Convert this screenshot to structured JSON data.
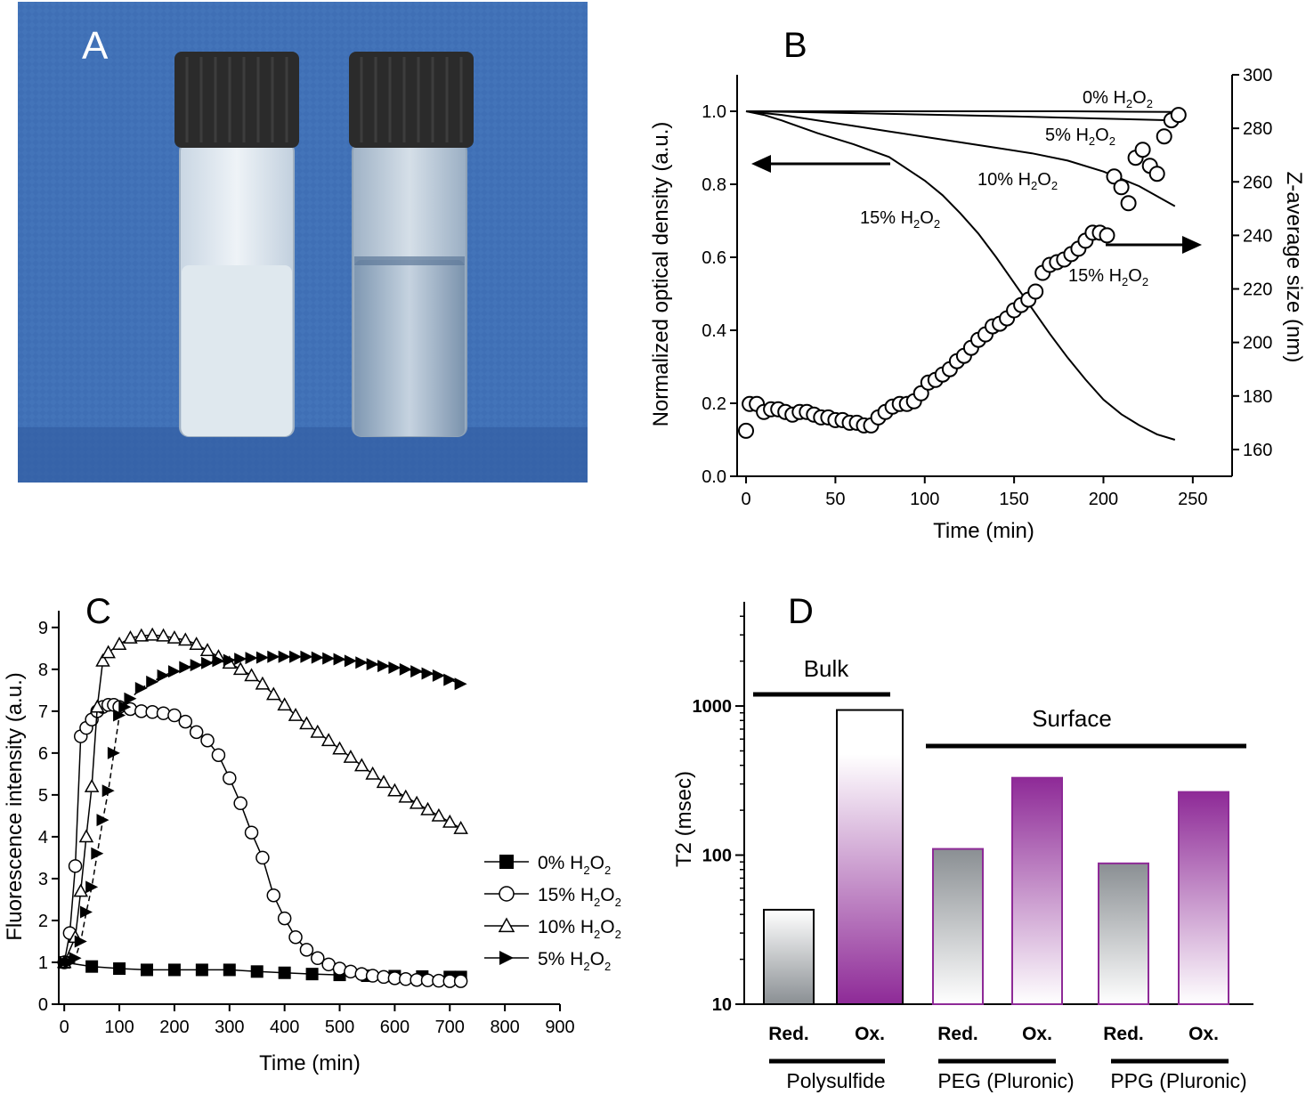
{
  "panel_a": {
    "label": "A",
    "vial_left": "turbid white dispersion",
    "vial_right": "clear solution"
  },
  "colors": {
    "photo_bg": "#3f6fb5",
    "photo_bg_dark": "#2f5a9e",
    "cap": "#2b2b2b",
    "milky": "#dde6ec",
    "purple": "#8e2a97",
    "grey_bar": "#8a8f93",
    "line": "#000000"
  },
  "chart_data": [
    {
      "id": "B",
      "label": "B",
      "type": "line",
      "xlabel": "Time (min)",
      "ylabel": "Normalized optical density (a.u.)",
      "y2label": "Z-average size (nm)",
      "xlim": [
        -5,
        272
      ],
      "ylim": [
        0,
        1.1
      ],
      "y2lim": [
        150,
        300
      ],
      "xticks": [
        "0",
        "50",
        "100",
        "150",
        "200",
        "250"
      ],
      "yticks": [
        "0.0",
        "0.2",
        "0.4",
        "0.6",
        "0.8",
        "1.0"
      ],
      "y2ticks": [
        "160",
        "180",
        "200",
        "220",
        "240",
        "260",
        "280",
        "300"
      ],
      "series": [
        {
          "name": "0% H2O2",
          "label_main": "0% H",
          "label_sub": "2",
          "label_tail": "O",
          "label_sub2": "2",
          "axis": "left",
          "x": [
            0,
            60,
            120,
            180,
            240
          ],
          "y": [
            1.0,
            1.0,
            1.0,
            1.0,
            0.998
          ]
        },
        {
          "name": "5% H2O2",
          "label_main": "5% H",
          "label_sub": "2",
          "label_tail": "O",
          "label_sub2": "2",
          "axis": "left",
          "x": [
            0,
            40,
            80,
            120,
            160,
            200,
            240
          ],
          "y": [
            1.0,
            0.997,
            0.993,
            0.989,
            0.985,
            0.98,
            0.975
          ]
        },
        {
          "name": "10% H2O2",
          "label_main": "10% H",
          "label_sub": "2",
          "label_tail": "O",
          "label_sub2": "2",
          "axis": "left",
          "x": [
            0,
            20,
            40,
            60,
            80,
            100,
            120,
            140,
            160,
            180,
            200,
            220,
            240
          ],
          "y": [
            1.0,
            0.99,
            0.975,
            0.96,
            0.945,
            0.93,
            0.915,
            0.9,
            0.885,
            0.865,
            0.835,
            0.795,
            0.74
          ]
        },
        {
          "name": "15% H2O2 (OD)",
          "label_main": "15% H",
          "label_sub": "2",
          "label_tail": "O",
          "label_sub2": "2",
          "axis": "left",
          "x": [
            0,
            10,
            20,
            40,
            60,
            80,
            100,
            110,
            120,
            130,
            140,
            150,
            160,
            170,
            180,
            190,
            200,
            210,
            220,
            230,
            240
          ],
          "y": [
            1.0,
            0.99,
            0.975,
            0.94,
            0.91,
            0.875,
            0.81,
            0.77,
            0.72,
            0.665,
            0.6,
            0.53,
            0.46,
            0.39,
            0.325,
            0.265,
            0.21,
            0.17,
            0.14,
            0.115,
            0.1
          ]
        },
        {
          "name": "15% H2O2 (size)",
          "label_main": "15% H",
          "label_sub": "2",
          "label_tail": "O",
          "label_sub2": "2",
          "axis": "right",
          "marker": "open-circle",
          "x": [
            0,
            2,
            6,
            10,
            14,
            18,
            22,
            26,
            30,
            34,
            38,
            42,
            46,
            50,
            54,
            58,
            62,
            66,
            70,
            74,
            78,
            82,
            86,
            90,
            94,
            98,
            102,
            106,
            110,
            114,
            118,
            122,
            126,
            130,
            134,
            138,
            142,
            146,
            150,
            154,
            158,
            162,
            166,
            170,
            174,
            178,
            182,
            186,
            190,
            194,
            198,
            202,
            206,
            210,
            214,
            218,
            222,
            226,
            230,
            234,
            238,
            242
          ],
          "y": [
            167,
            177,
            177,
            174,
            175,
            175,
            174,
            173,
            174,
            174,
            173,
            172,
            172,
            171,
            171,
            170,
            170,
            169,
            169,
            172,
            174,
            176,
            177,
            177,
            178,
            181,
            185,
            186,
            188,
            190,
            193,
            195,
            198,
            201,
            203,
            206,
            207,
            209,
            212,
            214,
            216,
            219,
            226,
            229,
            230,
            231,
            233,
            235,
            238,
            241,
            241,
            240,
            262,
            258,
            252,
            269,
            272,
            266,
            263,
            277,
            283,
            285
          ]
        }
      ],
      "annotations": [
        "0% H2O2",
        "5% H2O2",
        "10% H2O2",
        "15% H2O2",
        "15% H2O2"
      ]
    },
    {
      "id": "C",
      "label": "C",
      "type": "scatter",
      "xlabel": "Time (min)",
      "ylabel": "Fluorescence intensity (a.u.)",
      "xlim": [
        -10,
        900
      ],
      "ylim": [
        0,
        9.4
      ],
      "xticks": [
        "0",
        "100",
        "200",
        "300",
        "400",
        "500",
        "600",
        "700",
        "800",
        "900"
      ],
      "yticks": [
        "0",
        "1",
        "2",
        "3",
        "4",
        "5",
        "6",
        "7",
        "8",
        "9"
      ],
      "legend": [
        {
          "prefix": "0% H",
          "sub": "2",
          "tail": "O",
          "sub2": "2",
          "marker": "filled-square"
        },
        {
          "prefix": "15% H",
          "sub": "2",
          "tail": "O",
          "sub2": "2",
          "marker": "open-circle"
        },
        {
          "prefix": "10% H",
          "sub": "2",
          "tail": "O",
          "sub2": "2",
          "marker": "open-triangle"
        },
        {
          "prefix": "5% H",
          "sub": "2",
          "tail": "O",
          "sub2": "2",
          "marker": "filled-triangle-right"
        }
      ],
      "series": [
        {
          "name": "0% H2O2",
          "marker": "filled-square",
          "x": [
            0,
            50,
            100,
            150,
            200,
            250,
            300,
            350,
            400,
            450,
            500,
            550,
            600,
            650,
            700,
            720
          ],
          "y": [
            1.0,
            0.9,
            0.85,
            0.82,
            0.82,
            0.82,
            0.82,
            0.78,
            0.75,
            0.72,
            0.7,
            0.68,
            0.67,
            0.66,
            0.65,
            0.65
          ]
        },
        {
          "name": "15% H2O2",
          "marker": "open-circle",
          "x": [
            0,
            10,
            20,
            30,
            40,
            50,
            60,
            70,
            80,
            90,
            100,
            120,
            140,
            160,
            180,
            200,
            220,
            240,
            260,
            280,
            300,
            320,
            340,
            360,
            380,
            400,
            420,
            440,
            460,
            480,
            500,
            520,
            540,
            560,
            580,
            600,
            620,
            640,
            660,
            680,
            700,
            720
          ],
          "y": [
            1.0,
            1.7,
            3.3,
            6.4,
            6.6,
            6.8,
            7.0,
            7.1,
            7.15,
            7.15,
            7.1,
            7.05,
            7.0,
            6.98,
            6.95,
            6.9,
            6.75,
            6.5,
            6.3,
            5.95,
            5.4,
            4.8,
            4.1,
            3.5,
            2.6,
            2.05,
            1.6,
            1.3,
            1.1,
            0.95,
            0.85,
            0.78,
            0.72,
            0.68,
            0.65,
            0.62,
            0.6,
            0.58,
            0.57,
            0.56,
            0.55,
            0.55
          ]
        },
        {
          "name": "10% H2O2",
          "marker": "open-triangle",
          "x": [
            0,
            20,
            30,
            40,
            50,
            60,
            70,
            80,
            100,
            120,
            140,
            160,
            180,
            200,
            220,
            240,
            260,
            280,
            300,
            320,
            340,
            360,
            380,
            400,
            420,
            440,
            460,
            480,
            500,
            520,
            540,
            560,
            580,
            600,
            620,
            640,
            660,
            680,
            700,
            720
          ],
          "y": [
            1.0,
            1.6,
            2.7,
            4.0,
            5.2,
            7.1,
            8.2,
            8.4,
            8.6,
            8.75,
            8.8,
            8.82,
            8.8,
            8.75,
            8.7,
            8.6,
            8.45,
            8.3,
            8.15,
            8.0,
            7.85,
            7.65,
            7.4,
            7.15,
            6.9,
            6.7,
            6.5,
            6.3,
            6.1,
            5.9,
            5.7,
            5.5,
            5.3,
            5.1,
            4.95,
            4.8,
            4.65,
            4.5,
            4.35,
            4.2
          ]
        },
        {
          "name": "5% H2O2",
          "marker": "filled-triangle-right",
          "x": [
            0,
            10,
            20,
            30,
            40,
            50,
            60,
            70,
            80,
            90,
            100,
            110,
            120,
            140,
            160,
            180,
            200,
            220,
            240,
            260,
            280,
            300,
            320,
            340,
            360,
            380,
            400,
            420,
            440,
            460,
            480,
            500,
            520,
            540,
            560,
            580,
            600,
            620,
            640,
            660,
            680,
            700,
            720
          ],
          "y": [
            1.0,
            1.0,
            1.1,
            1.5,
            2.2,
            2.8,
            3.6,
            4.4,
            5.1,
            6.0,
            6.9,
            7.1,
            7.3,
            7.55,
            7.7,
            7.85,
            7.95,
            8.05,
            8.1,
            8.15,
            8.2,
            8.22,
            8.25,
            8.27,
            8.28,
            8.3,
            8.3,
            8.3,
            8.3,
            8.28,
            8.26,
            8.24,
            8.2,
            8.16,
            8.12,
            8.08,
            8.04,
            8.0,
            7.95,
            7.9,
            7.85,
            7.75,
            7.65
          ]
        }
      ]
    },
    {
      "id": "D",
      "label": "D",
      "type": "bar",
      "ylabel": "T2 (msec)",
      "yscale": "log",
      "ylim": [
        10,
        5000
      ],
      "yticks": [
        "10",
        "100",
        "1000"
      ],
      "categories": [
        "Red.",
        "Ox.",
        "Red.",
        "Ox.",
        "Red.",
        "Ox."
      ],
      "values": [
        43,
        940,
        110,
        330,
        88,
        265
      ],
      "bar_styles": [
        "grey",
        "purple",
        "grey",
        "purple",
        "grey",
        "purple"
      ],
      "groups": [
        "Polysulfide",
        "PEG (Pluronic)",
        "PPG (Pluronic)"
      ],
      "brackets": {
        "bulk": "Bulk",
        "surface": "Surface"
      }
    }
  ]
}
